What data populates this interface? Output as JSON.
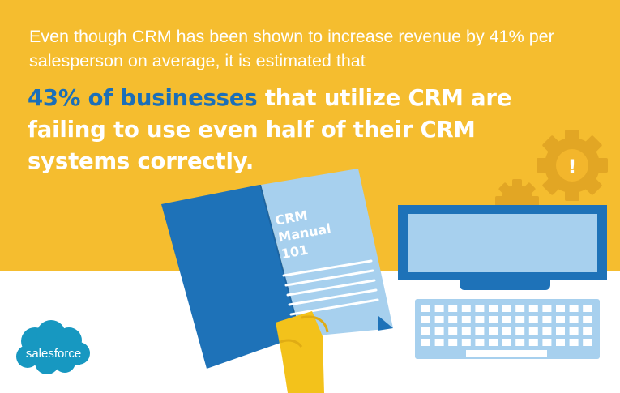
{
  "intro_text": "Even though CRM has been shown to increase revenue by 41% per salesperson on average, it is estimated that",
  "headline": {
    "highlight": "43% of businesses",
    "rest": " that utilize CRM are failing to use even half of their CRM systems correctly."
  },
  "book": {
    "line1": "CRM",
    "line2": "Manual",
    "line3": "101"
  },
  "gear_alert_symbol": "!",
  "logo_text": "salesforce",
  "icons": [
    "crm-manual-book-icon",
    "hand-icon",
    "monitor-icon",
    "keyboard-icon",
    "gear-alert-icon",
    "salesforce-cloud-logo"
  ],
  "colors": {
    "background_top": "#F5BD2F",
    "background_bottom": "#FFFFFF",
    "highlight_text": "#1B6FB8",
    "book_blue": "#1E72B8",
    "light_blue": "#A7D0EE",
    "gear": "#E2A624",
    "hand": "#F3C21B",
    "salesforce_blue": "#1798C1"
  }
}
